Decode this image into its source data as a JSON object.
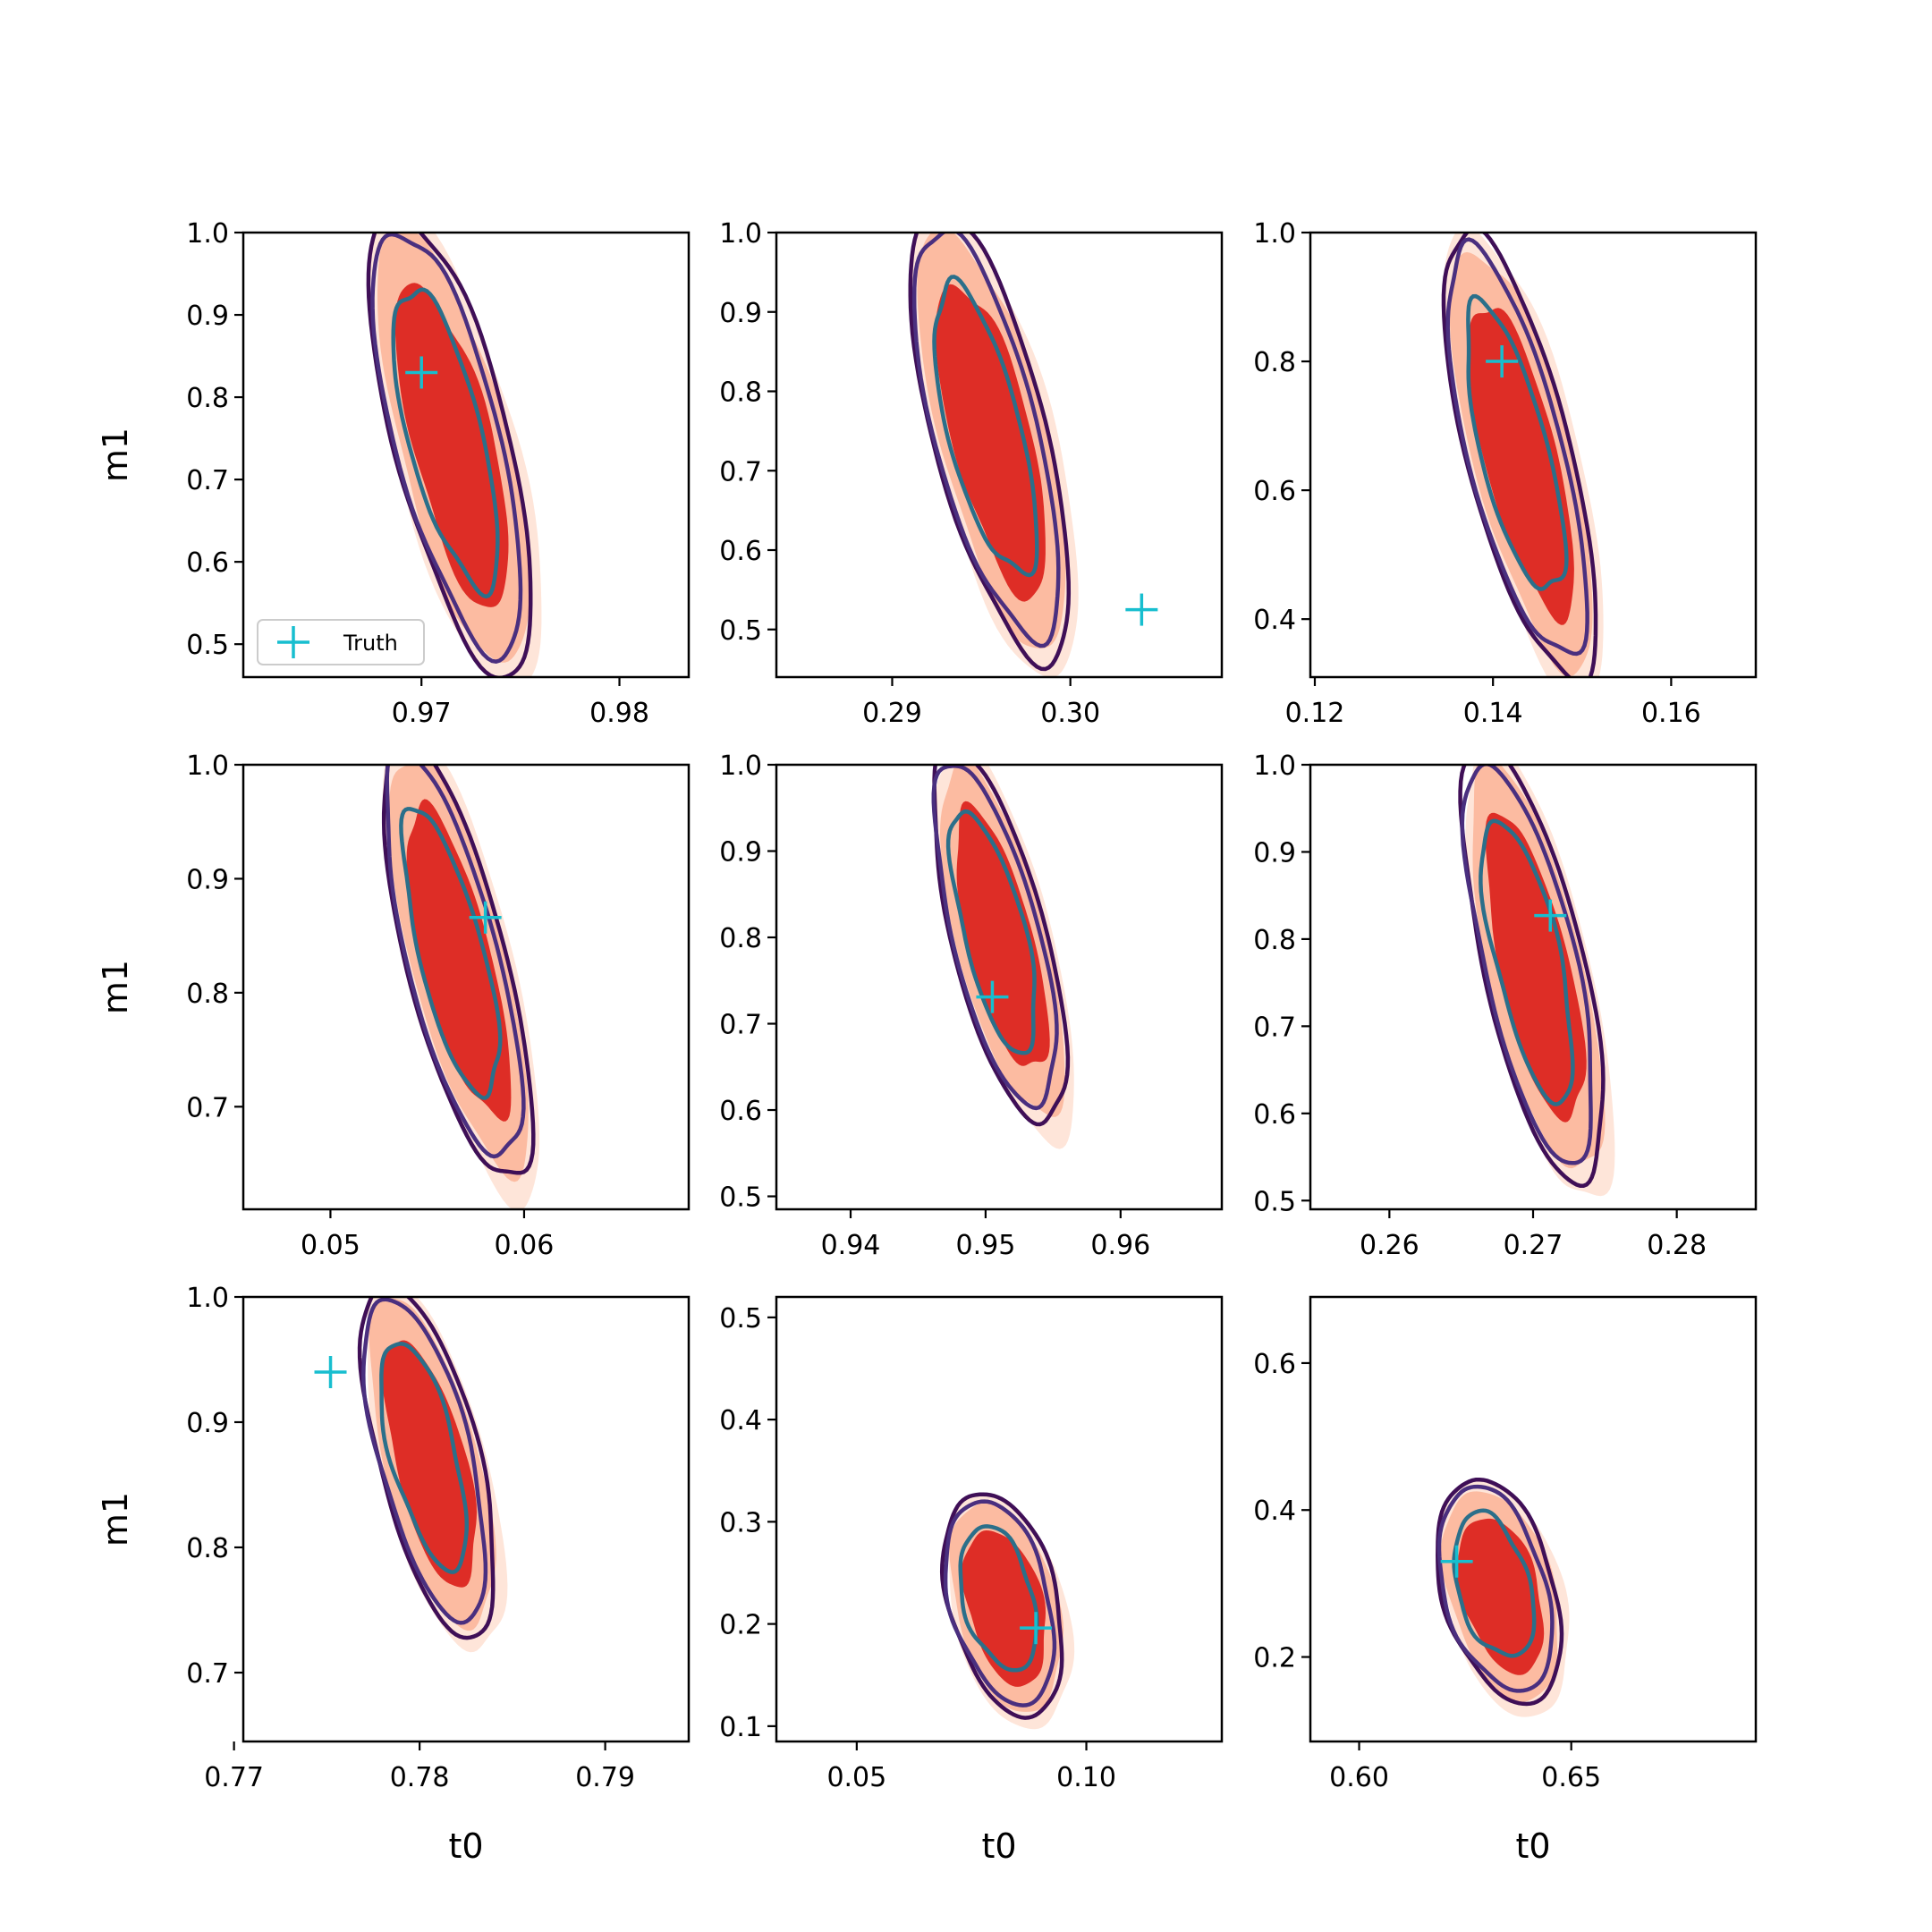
{
  "chart_data": [
    {
      "type": "contour",
      "xlabel": "",
      "ylabel": "m1",
      "xlim": [
        0.961,
        0.9835
      ],
      "ylim": [
        0.46,
        1.0
      ],
      "xticks": [
        0.97,
        0.98
      ],
      "xtick_labels": [
        "0.97",
        "0.98"
      ],
      "yticks": [
        0.5,
        0.6,
        0.7,
        0.8,
        0.9,
        1.0
      ],
      "ytick_labels": [
        "0.5",
        "0.6",
        "0.7",
        "0.8",
        "0.9",
        "1.0"
      ],
      "truth": [
        0.97,
        0.83
      ],
      "center": [
        0.9715,
        0.745
      ],
      "half_width": [
        0.0062,
        0.26
      ],
      "tilt": -0.55,
      "legend": {
        "label": "Truth",
        "loc": "lower-left"
      }
    },
    {
      "type": "contour",
      "xlabel": "",
      "ylabel": "",
      "xlim": [
        0.2835,
        0.3085
      ],
      "ylim": [
        0.44,
        1.0
      ],
      "xticks": [
        0.29,
        0.3
      ],
      "xtick_labels": [
        "0.29",
        "0.30"
      ],
      "yticks": [
        0.5,
        0.6,
        0.7,
        0.8,
        0.9,
        1.0
      ],
      "ytick_labels": [
        "0.5",
        "0.6",
        "0.7",
        "0.8",
        "0.9",
        "1.0"
      ],
      "truth": [
        0.304,
        0.525
      ],
      "center": [
        0.2955,
        0.745
      ],
      "half_width": [
        0.0068,
        0.26
      ],
      "tilt": -0.55
    },
    {
      "type": "contour",
      "xlabel": "",
      "ylabel": "",
      "xlim": [
        0.1195,
        0.1695
      ],
      "ylim": [
        0.31,
        1.0
      ],
      "xticks": [
        0.12,
        0.14,
        0.16
      ],
      "xtick_labels": [
        "0.12",
        "0.14",
        "0.16"
      ],
      "yticks": [
        0.4,
        0.6,
        0.8,
        1.0
      ],
      "ytick_labels": [
        "0.4",
        "0.6",
        "0.8",
        "1.0"
      ],
      "truth": [
        0.141,
        0.8
      ],
      "center": [
        0.143,
        0.655
      ],
      "half_width": [
        0.0125,
        0.32
      ],
      "tilt": -0.55
    },
    {
      "type": "contour",
      "xlabel": "",
      "ylabel": "m1",
      "xlim": [
        0.0455,
        0.0685
      ],
      "ylim": [
        0.61,
        1.0
      ],
      "xticks": [
        0.05,
        0.06
      ],
      "xtick_labels": [
        "0.05",
        "0.06"
      ],
      "yticks": [
        0.7,
        0.8,
        0.9,
        1.0
      ],
      "ytick_labels": [
        "0.7",
        "0.8",
        "0.9",
        "1.0"
      ],
      "truth": [
        0.058,
        0.866
      ],
      "center": [
        0.0565,
        0.83
      ],
      "half_width": [
        0.0055,
        0.18
      ],
      "tilt": -0.55
    },
    {
      "type": "contour",
      "xlabel": "",
      "ylabel": "",
      "xlim": [
        0.9345,
        0.9675
      ],
      "ylim": [
        0.485,
        1.0
      ],
      "xticks": [
        0.94,
        0.95,
        0.96
      ],
      "xtick_labels": [
        "0.94",
        "0.95",
        "0.96"
      ],
      "yticks": [
        0.5,
        0.6,
        0.7,
        0.8,
        0.9,
        1.0
      ],
      "ytick_labels": [
        "0.5",
        "0.6",
        "0.7",
        "0.8",
        "0.9",
        "1.0"
      ],
      "truth": [
        0.9505,
        0.731
      ],
      "center": [
        0.951,
        0.8
      ],
      "half_width": [
        0.0075,
        0.2
      ],
      "tilt": -0.55
    },
    {
      "type": "contour",
      "xlabel": "",
      "ylabel": "",
      "xlim": [
        0.2545,
        0.2855
      ],
      "ylim": [
        0.49,
        1.0
      ],
      "xticks": [
        0.26,
        0.27,
        0.28
      ],
      "xtick_labels": [
        "0.26",
        "0.27",
        "0.28"
      ],
      "yticks": [
        0.5,
        0.6,
        0.7,
        0.8,
        0.9,
        1.0
      ],
      "ytick_labels": [
        "0.5",
        "0.6",
        "0.7",
        "0.8",
        "0.9",
        "1.0"
      ],
      "truth": [
        0.2712,
        0.827
      ],
      "center": [
        0.27,
        0.77
      ],
      "half_width": [
        0.0075,
        0.23
      ],
      "tilt": -0.5
    },
    {
      "type": "contour",
      "xlabel": "t0",
      "ylabel": "m1",
      "xlim": [
        0.7705,
        0.7945
      ],
      "ylim": [
        0.645,
        1.0
      ],
      "xticks": [
        0.77,
        0.78,
        0.79
      ],
      "xtick_labels": [
        "0.77",
        "0.78",
        "0.79"
      ],
      "yticks": [
        0.7,
        0.8,
        0.9,
        1.0
      ],
      "ytick_labels": [
        "0.7",
        "0.8",
        "0.9",
        "1.0"
      ],
      "truth": [
        0.7752,
        0.94
      ],
      "center": [
        0.7805,
        0.87
      ],
      "half_width": [
        0.0058,
        0.13
      ],
      "tilt": -0.55
    },
    {
      "type": "contour",
      "xlabel": "t0",
      "ylabel": "",
      "xlim": [
        0.0325,
        0.1295
      ],
      "ylim": [
        0.085,
        0.52
      ],
      "xticks": [
        0.05,
        0.1
      ],
      "xtick_labels": [
        "0.05",
        "0.10"
      ],
      "yticks": [
        0.1,
        0.2,
        0.3,
        0.4,
        0.5
      ],
      "ytick_labels": [
        "0.1",
        "0.2",
        "0.3",
        "0.4",
        "0.5"
      ],
      "truth": [
        0.089,
        0.196
      ],
      "center": [
        0.082,
        0.22
      ],
      "half_width": [
        0.025,
        0.1
      ],
      "tilt": -0.55
    },
    {
      "type": "contour",
      "xlabel": "t0",
      "ylabel": "",
      "xlim": [
        0.5885,
        0.6935
      ],
      "ylim": [
        0.085,
        0.69
      ],
      "xticks": [
        0.6,
        0.65
      ],
      "xtick_labels": [
        "0.60",
        "0.65"
      ],
      "yticks": [
        0.2,
        0.4,
        0.6
      ],
      "ytick_labels": [
        "0.2",
        "0.4",
        "0.6"
      ],
      "truth": [
        0.623,
        0.33
      ],
      "center": [
        0.633,
        0.29
      ],
      "half_width": [
        0.028,
        0.14
      ],
      "tilt": -0.6
    }
  ],
  "colors": {
    "fill_outer": "#fee5d9",
    "fill_mid": "#fcbba1",
    "fill_inner": "#de2d26",
    "line_outer": "#3f0f57",
    "line_mid": "#4a2f7f",
    "line_inner": "#2b6f8a",
    "truth": "#17becf"
  }
}
